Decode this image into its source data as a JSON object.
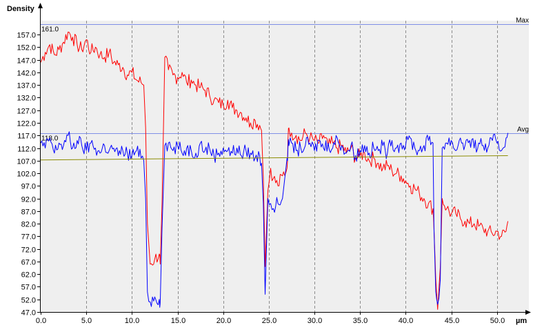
{
  "chart_data": {
    "type": "line",
    "ylabel": "Density",
    "xlabel": "µm",
    "xlim": [
      0.0,
      53.5
    ],
    "ylim": [
      47.0,
      162.5
    ],
    "x_ticks": [
      "0.0",
      "5.0",
      "10.0",
      "15.0",
      "20.0",
      "25.0",
      "30.0",
      "35.0",
      "40.0",
      "45.0",
      "50.0"
    ],
    "y_ticks": [
      "47.0",
      "52.0",
      "57.0",
      "62.0",
      "67.0",
      "72.0",
      "77.0",
      "82.0",
      "87.0",
      "92.0",
      "97.0",
      "102.0",
      "107.0",
      "112.0",
      "117.0",
      "122.0",
      "127.0",
      "132.0",
      "137.0",
      "142.0",
      "147.0",
      "152.0",
      "157.0"
    ],
    "grid": {
      "vertical_dashed": true,
      "horizontal": false
    },
    "reference_lines": [
      {
        "name": "Max",
        "value": 161.0,
        "label": "161.0",
        "color": "#7f8fe6"
      },
      {
        "name": "Avg",
        "value": 118.0,
        "label": "118.0",
        "color": "#7f8fe6"
      }
    ],
    "series": [
      {
        "color": "#ff0000",
        "x": [
          0,
          0.5,
          1,
          1.5,
          2,
          2.5,
          3,
          3.5,
          4,
          4.5,
          5,
          5.5,
          6,
          6.5,
          7,
          7.5,
          8,
          8.5,
          9,
          9.5,
          10,
          10.5,
          11,
          11.3,
          11.5,
          11.7,
          12,
          12.5,
          13,
          13.1,
          13.3,
          13.6,
          14,
          14.5,
          15,
          15.5,
          16,
          16.5,
          17,
          17.5,
          18,
          18.5,
          19,
          19.5,
          20,
          20.5,
          21,
          21.5,
          22,
          22.5,
          23,
          23.5,
          24,
          24.2,
          24.4,
          24.6,
          24.9,
          25.2,
          25.5,
          26,
          26.5,
          27,
          27.1,
          27.2,
          27.5,
          28,
          28.5,
          29,
          29.5,
          30,
          30.5,
          31,
          31.5,
          32,
          32.5,
          33,
          33.5,
          34,
          34.5,
          35,
          35.5,
          36,
          36.5,
          37,
          37.5,
          38,
          38.5,
          39,
          39.5,
          40,
          40.5,
          41,
          41.5,
          42,
          42.5,
          43,
          43.1,
          43.3,
          43.5,
          43.8,
          44,
          44.5,
          45,
          45.5,
          46,
          46.5,
          47,
          47.5,
          48,
          48.5,
          49,
          49.5,
          50,
          50.5,
          51,
          51.2
        ],
        "values": [
          146,
          150,
          153,
          149,
          151,
          154,
          158,
          156,
          153,
          151,
          155,
          150,
          152,
          149,
          148,
          150,
          146,
          145,
          144,
          141,
          142,
          139,
          138,
          137,
          120,
          82,
          66,
          68,
          70,
          66,
          90,
          148,
          143,
          141,
          140,
          142,
          138,
          139,
          137,
          136,
          135,
          133,
          131,
          130,
          129,
          131,
          128,
          127,
          126,
          124,
          122,
          123,
          121,
          119,
          100,
          65,
          95,
          104,
          100,
          97,
          101,
          104,
          115,
          120,
          118,
          117,
          115,
          118,
          116,
          115,
          114,
          117,
          113,
          114,
          112,
          113,
          110,
          112,
          108,
          109,
          110,
          107,
          108,
          106,
          104,
          105,
          103,
          102,
          101,
          99,
          97,
          96,
          94,
          92,
          90,
          88,
          80,
          60,
          48,
          65,
          92,
          88,
          86,
          86,
          84,
          83,
          82,
          82,
          81,
          80,
          79,
          78,
          79,
          77,
          79,
          83
        ]
      },
      {
        "color": "#0000ff",
        "x": [
          0,
          0.5,
          1,
          1.5,
          2,
          2.5,
          3,
          3.5,
          4,
          4.5,
          5,
          5.5,
          6,
          6.5,
          7,
          7.5,
          8,
          8.5,
          9,
          9.5,
          10,
          10.5,
          11,
          11.3,
          11.5,
          11.7,
          12,
          12.5,
          13,
          13.1,
          13.3,
          13.6,
          14,
          14.5,
          15,
          15.5,
          16,
          16.5,
          17,
          17.5,
          18,
          18.5,
          19,
          19.5,
          20,
          20.5,
          21,
          21.5,
          22,
          22.5,
          23,
          23.5,
          24,
          24.2,
          24.4,
          24.6,
          24.9,
          25.2,
          25.5,
          26,
          26.5,
          27,
          27.1,
          27.2,
          27.5,
          28,
          28.5,
          29,
          29.5,
          30,
          30.5,
          31,
          31.5,
          32,
          32.5,
          33,
          33.5,
          34,
          34.5,
          35,
          35.5,
          36,
          36.5,
          37,
          37.5,
          38,
          38.5,
          39,
          39.5,
          40,
          40.5,
          41,
          41.5,
          42,
          42.5,
          43,
          43.1,
          43.3,
          43.5,
          43.8,
          44,
          44.5,
          45,
          45.5,
          46,
          46.5,
          47,
          47.5,
          48,
          48.5,
          49,
          49.5,
          50,
          50.5,
          51,
          51.2
        ],
        "values": [
          114,
          112,
          116,
          110,
          114,
          113,
          117,
          112,
          115,
          113,
          111,
          114,
          112,
          110,
          113,
          111,
          112,
          109,
          111,
          110,
          109,
          111,
          108,
          107,
          92,
          55,
          51,
          53,
          52,
          51,
          80,
          113,
          114,
          111,
          113,
          110,
          112,
          111,
          110,
          114,
          111,
          112,
          109,
          110,
          112,
          111,
          110,
          112,
          109,
          111,
          110,
          108,
          109,
          106,
          90,
          54,
          92,
          90,
          88,
          90,
          92,
          108,
          112,
          113,
          114,
          111,
          112,
          113,
          114,
          111,
          115,
          112,
          114,
          112,
          116,
          113,
          110,
          113,
          109,
          111,
          113,
          110,
          112,
          111,
          113,
          110,
          115,
          112,
          114,
          113,
          116,
          112,
          111,
          113,
          115,
          114,
          80,
          55,
          50,
          60,
          112,
          114,
          115,
          111,
          116,
          113,
          115,
          112,
          114,
          113,
          112,
          115,
          114,
          111,
          116,
          118
        ]
      },
      {
        "color": "#8b8b00",
        "x": [
          0,
          51.2
        ],
        "values": [
          107.3,
          109.0
        ]
      }
    ]
  }
}
